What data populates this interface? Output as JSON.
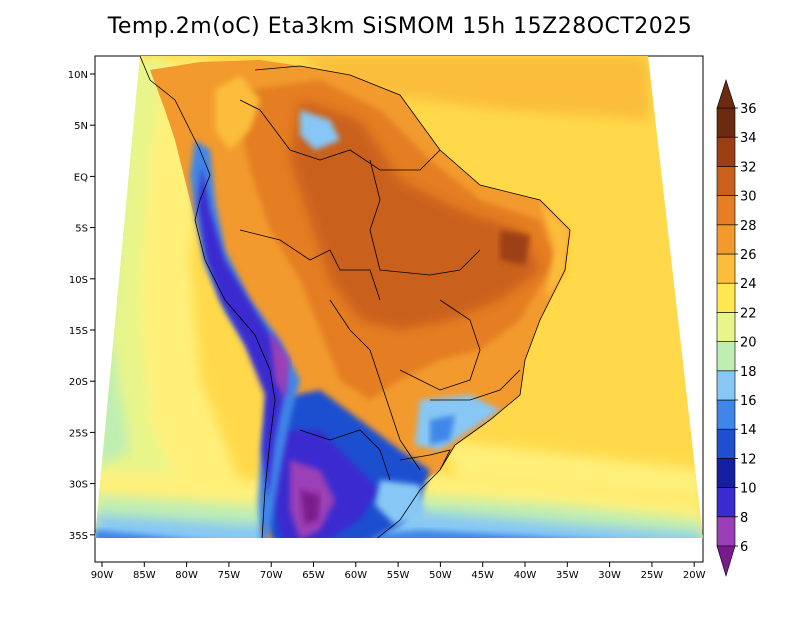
{
  "title": "Temp.2m(oC) Eta3km SiSMOM 15h 15Z28OCT2025",
  "map": {
    "region": "South America",
    "lon_range": [
      -91,
      -20
    ],
    "lat_range": [
      -38,
      11
    ],
    "lon_ticks": [
      "90W",
      "85W",
      "80W",
      "75W",
      "70W",
      "65W",
      "60W",
      "55W",
      "50W",
      "45W",
      "40W",
      "35W",
      "30W",
      "25W",
      "20W"
    ],
    "lat_ticks": [
      "10N",
      "5N",
      "EQ",
      "5S",
      "10S",
      "15S",
      "20S",
      "25S",
      "30S",
      "35S"
    ]
  },
  "colorbar": {
    "labels": [
      "6",
      "8",
      "10",
      "12",
      "14",
      "16",
      "18",
      "20",
      "22",
      "24",
      "26",
      "28",
      "30",
      "32",
      "34",
      "36"
    ],
    "colors": [
      "#7b1a8c",
      "#9b3fb6",
      "#3a2bcf",
      "#1420a0",
      "#1f4fcf",
      "#3f86e8",
      "#86c7f5",
      "#bfeeb2",
      "#e8f58a",
      "#ffe84f",
      "#fbbd3a",
      "#f29a2e",
      "#e57e24",
      "#c9611c",
      "#9c3f15",
      "#6a2b10"
    ]
  }
}
